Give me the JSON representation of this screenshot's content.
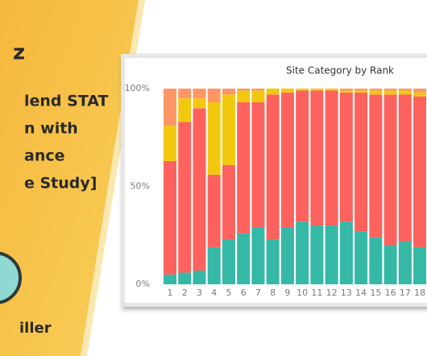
{
  "banner": {
    "logo": "z",
    "lines": [
      "lend STAT",
      "n with",
      "ance",
      "e Study]"
    ],
    "author": "iller"
  },
  "chart_data": {
    "type": "stacked_bar",
    "title": "Site Category by Rank",
    "categories": [
      "1",
      "2",
      "3",
      "4",
      "5",
      "6",
      "7",
      "8",
      "9",
      "10",
      "11",
      "12",
      "13",
      "14",
      "15",
      "16",
      "17",
      "18"
    ],
    "series": [
      {
        "color": "#35b8a6",
        "values": [
          5,
          6,
          7,
          19,
          23,
          26,
          29,
          23,
          29,
          32,
          30,
          30,
          32,
          27,
          24,
          20,
          22,
          19
        ]
      },
      {
        "color": "#fd625e",
        "values": [
          58,
          77,
          83,
          37,
          38,
          67,
          64,
          74,
          69,
          67,
          69,
          69,
          66,
          71,
          73,
          77,
          75,
          77
        ]
      },
      {
        "color": "#f2c80f",
        "values": [
          18,
          12,
          5,
          37,
          36,
          6,
          6,
          3,
          2,
          1,
          1,
          1,
          1,
          1,
          2,
          2,
          2,
          2
        ]
      },
      {
        "color": "#fe9666",
        "values": [
          19,
          5,
          5,
          7,
          3,
          1,
          1,
          0,
          0,
          0,
          0,
          0,
          1,
          1,
          1,
          1,
          1,
          2
        ]
      }
    ],
    "ylim": [
      0,
      100
    ],
    "yticks": [
      {
        "value": 0,
        "label": "0%"
      },
      {
        "value": 50,
        "label": "50%"
      },
      {
        "value": 100,
        "label": "100%"
      }
    ]
  }
}
